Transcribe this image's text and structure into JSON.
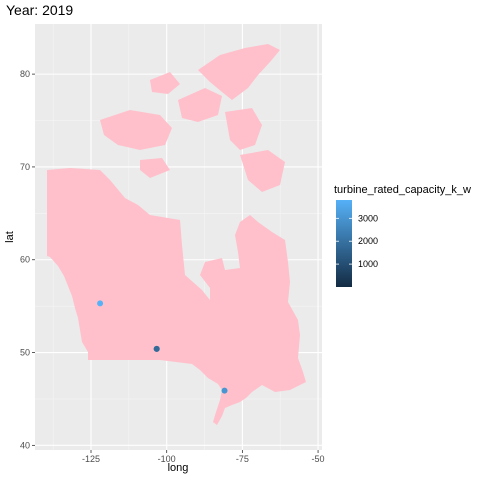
{
  "chart_data": {
    "type": "scatter",
    "title": "Year: 2019",
    "xlabel": "long",
    "ylabel": "lat",
    "xlim": [
      -143.5,
      -48.7
    ],
    "ylim": [
      39.5,
      85.4
    ],
    "x_ticks": [
      -125,
      -100,
      -75,
      -50
    ],
    "x_tick_labels": [
      "-125",
      "-100",
      "-75",
      "-50"
    ],
    "y_ticks": [
      40,
      50,
      60,
      70,
      80
    ],
    "y_tick_labels": [
      "40",
      "50",
      "60",
      "70",
      "80"
    ],
    "grid": true,
    "panel_background": "#ebebeb",
    "region_fill": "#ffc0cb",
    "points": [
      {
        "long": -122,
        "lat": 55.3,
        "capacity": 3800
      },
      {
        "long": -103.3,
        "lat": 50.4,
        "capacity": 2200
      },
      {
        "long": -103.3,
        "lat": 50.4,
        "capacity": 1800
      },
      {
        "long": -80.9,
        "lat": 45.9,
        "capacity": 3000
      }
    ],
    "legend": {
      "title": "turbine_rated_capacity_k_w",
      "placement": "right",
      "range": [
        0,
        3800
      ],
      "breaks": [
        1000,
        2000,
        3000
      ],
      "break_labels": [
        "1000",
        "2000",
        "3000"
      ],
      "color_low": "#132b43",
      "color_high": "#56b1f7"
    }
  }
}
